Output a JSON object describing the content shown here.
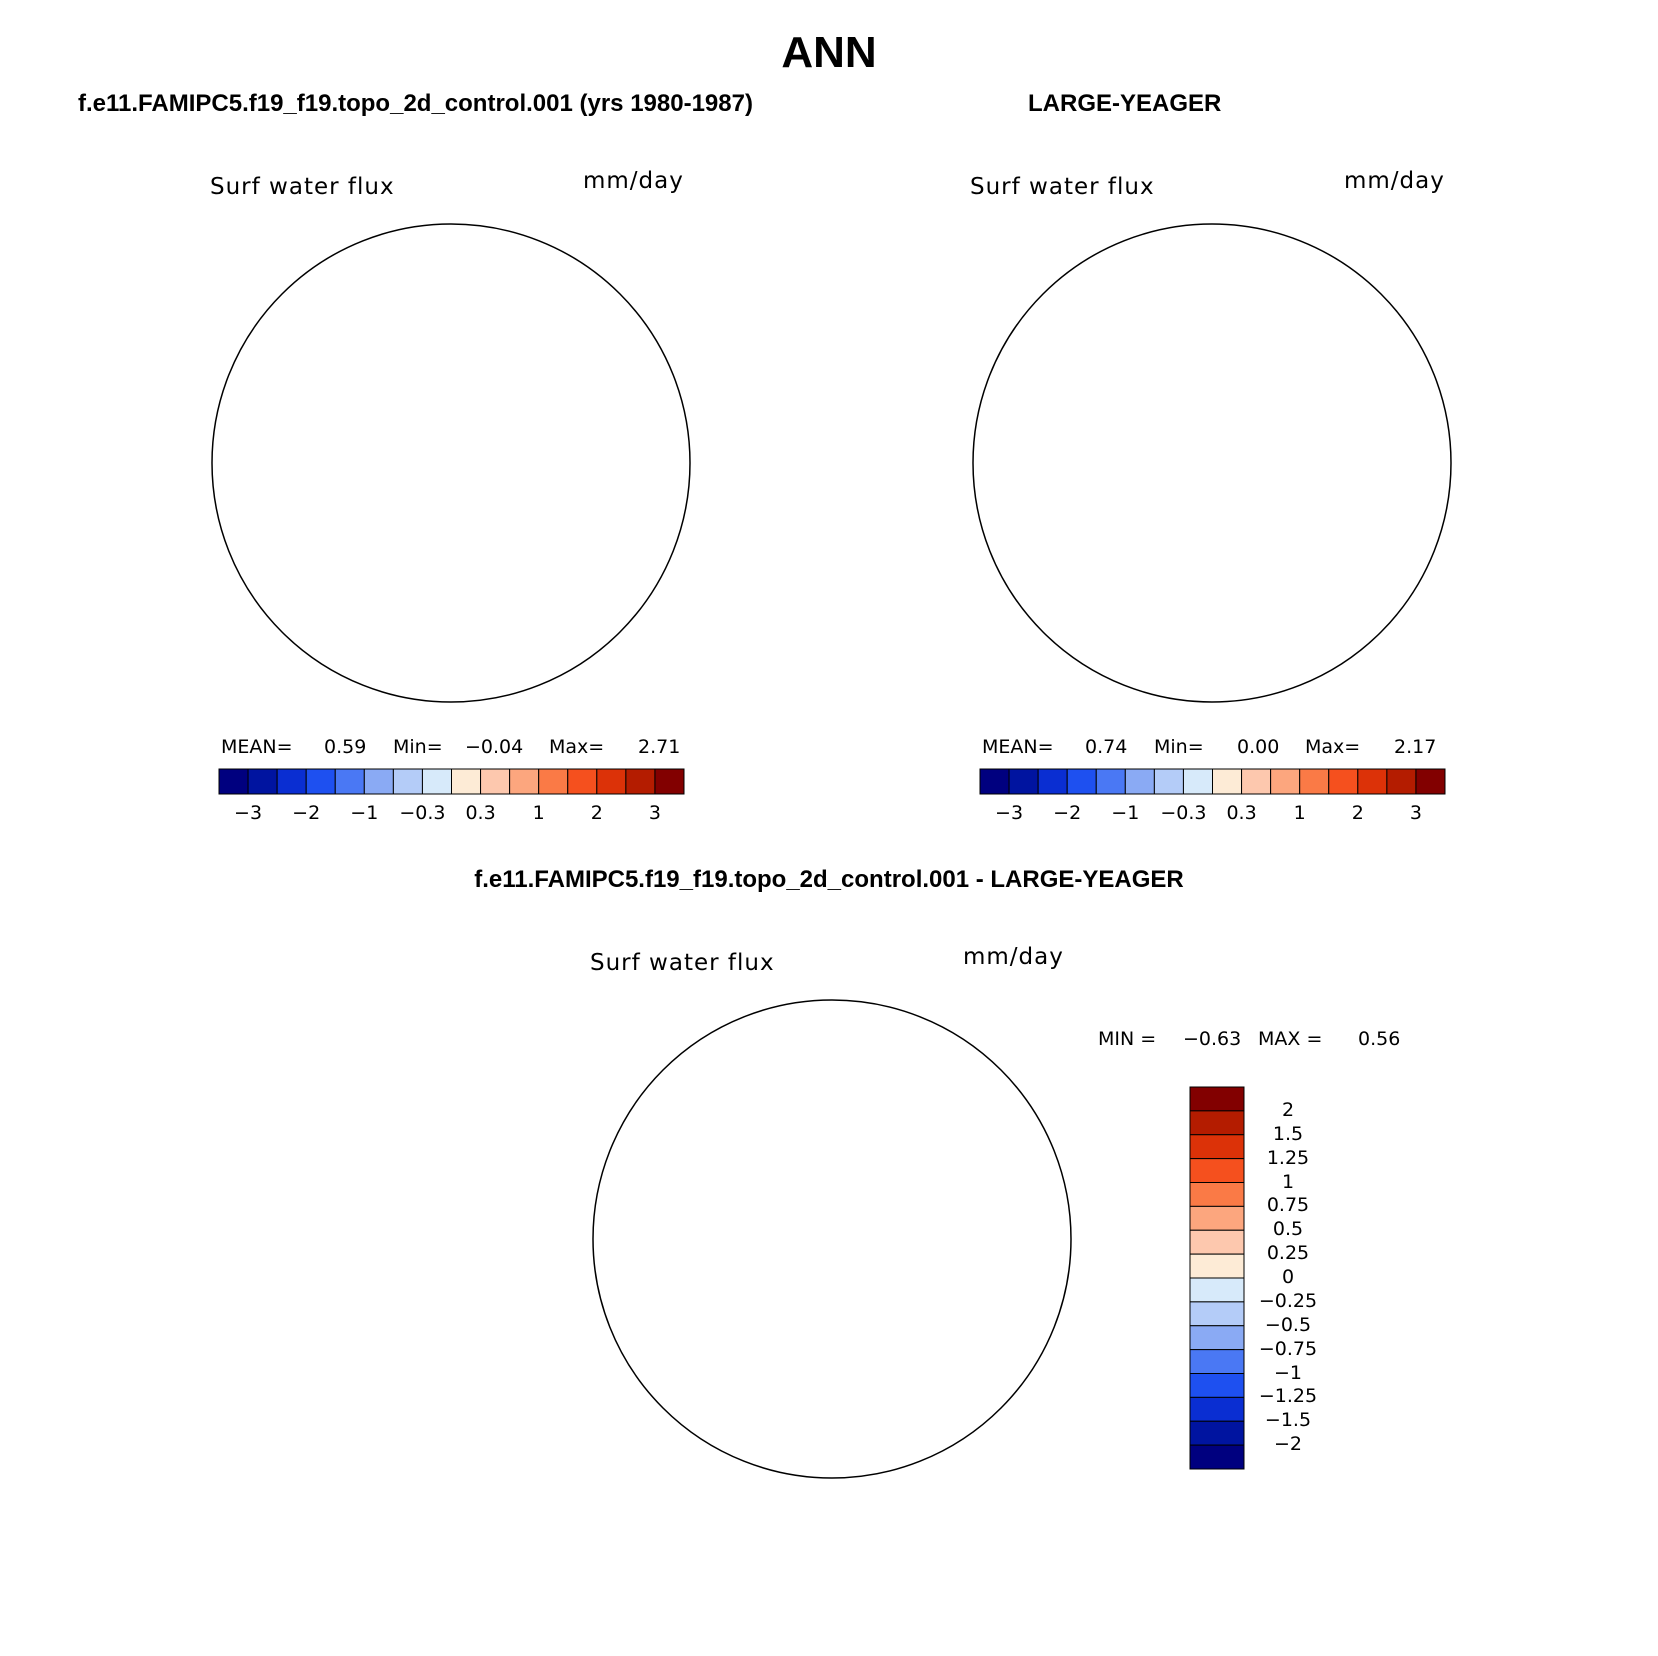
{
  "title": "ANN",
  "panels": [
    {
      "case": "f.e11.FAMIPC5.f19_f19.topo_2d_control.001 (yrs 1980-1987)",
      "variable": "Surf water flux",
      "units": "mm/day",
      "mean_label": "MEAN=",
      "mean": "0.59",
      "min_label": "Min=",
      "min": "−0.04",
      "max_label": "Max=",
      "max": "2.71",
      "land_fill": "#d7eafa"
    },
    {
      "case": "LARGE-YEAGER",
      "variable": "Surf water flux",
      "units": "mm/day",
      "mean_label": "MEAN=",
      "mean": "0.74",
      "min_label": "Min=",
      "min": "0.00",
      "max_label": "Max=",
      "max": "2.17",
      "land_fill": "#ffffff"
    },
    {
      "case": "f.e11.FAMIPC5.f19_f19.topo_2d_control.001 - LARGE-YEAGER",
      "variable": "Surf water flux",
      "units": "mm/day",
      "min_label": "MIN =",
      "min": "−0.63",
      "max_label": "MAX =",
      "max": "0.56"
    }
  ],
  "colorbar_abs": {
    "colors": [
      "#00007f",
      "#0014a0",
      "#0a2ed2",
      "#1e50f0",
      "#4a78f4",
      "#8aaaf4",
      "#b4ccf8",
      "#d7eafa",
      "#fdebd6",
      "#fdc8ae",
      "#fca67e",
      "#fa7a46",
      "#f5501e",
      "#dc3208",
      "#b41c00",
      "#820000"
    ],
    "tick_labels": [
      "−3",
      "−2",
      "−1",
      "−0.3",
      "0.3",
      "1",
      "2",
      "3"
    ]
  },
  "colorbar_diff": {
    "colors": [
      "#820000",
      "#b41c00",
      "#dc3208",
      "#f5501e",
      "#fa7a46",
      "#fca67e",
      "#fdc8ae",
      "#fdebd6",
      "#d7eafa",
      "#b4ccf8",
      "#8aaaf4",
      "#4a78f4",
      "#1e50f0",
      "#0a2ed2",
      "#0014a0",
      "#00007f"
    ],
    "tick_labels": [
      "2",
      "1.5",
      "1.25",
      "1",
      "0.75",
      "0.5",
      "0.25",
      "0",
      "−0.25",
      "−0.5",
      "−0.75",
      "−1",
      "−1.25",
      "−1.5",
      "−2"
    ]
  },
  "map_colors": {
    "c3": "#f5501e",
    "c2": "#fa7a46",
    "c1": "#fca67e",
    "c05": "#fdc8ae",
    "c0": "#fdebd6",
    "cn": "#d7eafa",
    "cn2": "#b4ccf8",
    "cdark": "#dc3208",
    "cdarker": "#b41c00"
  }
}
